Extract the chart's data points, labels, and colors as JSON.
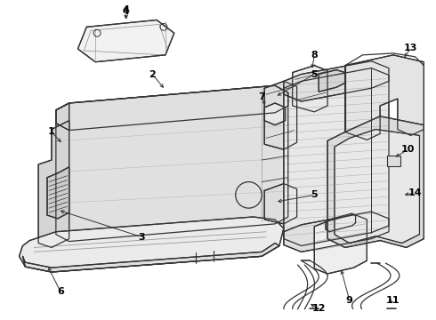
{
  "bg_color": "#ffffff",
  "line_color": "#333333",
  "label_color": "#000000",
  "fig_width": 4.9,
  "fig_height": 3.6,
  "dpi": 100,
  "lw": 0.9
}
